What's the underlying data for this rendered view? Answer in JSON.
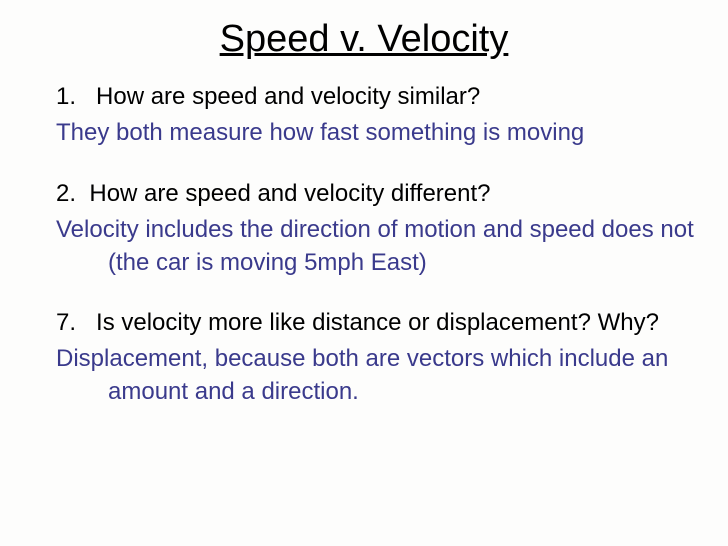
{
  "document": {
    "title": "Speed v. Velocity",
    "title_fontsize": 38,
    "title_color": "#000000",
    "body_fontsize": 24,
    "question_color": "#000000",
    "answer_color": "#3a3a8c",
    "background_color": "#fdfdfc",
    "font_family": "Comic Sans MS",
    "items": [
      {
        "number": "1.",
        "question": "How are speed and velocity similar?",
        "answer": "They both measure how fast something is moving"
      },
      {
        "number": "2.",
        "question": "How are speed and velocity different?",
        "answer": "Velocity includes the direction of motion and speed does not (the car is moving 5mph East)"
      },
      {
        "number": "7.",
        "question": "Is velocity more like distance or displacement? Why?",
        "answer": "Displacement, because both are vectors which include an amount and a direction."
      }
    ]
  }
}
